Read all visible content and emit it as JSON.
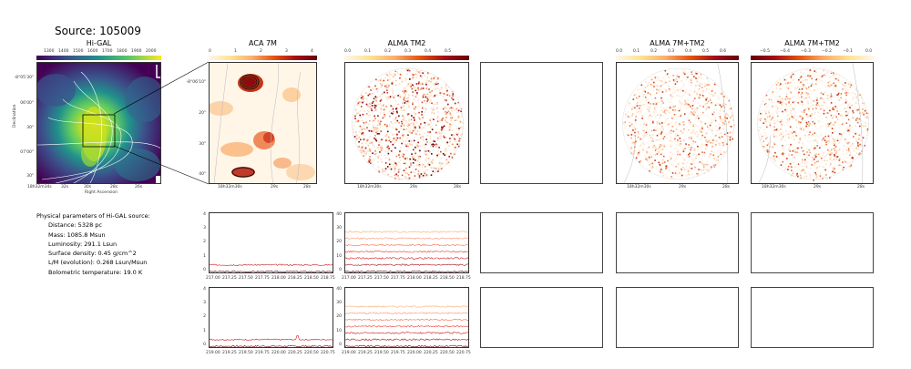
{
  "source_title": "Source: 105009",
  "panels": {
    "higal": {
      "title": "Hi-GAL",
      "colorbar_ticks": [
        "1300",
        "1400",
        "1500",
        "1600",
        "1700",
        "1800",
        "1900",
        "2000"
      ],
      "y_ticks": [
        "-8°05'30\"",
        "06'00\"",
        "30\"",
        "07'00\"",
        "30\""
      ],
      "x_ticks": [
        "18h32m34s",
        "32s",
        "30s",
        "28s",
        "26s"
      ],
      "ylabel": "Declination",
      "xlabel": "Right Ascension"
    },
    "aca": {
      "title": "ACA 7M",
      "colorbar_ticks": [
        "0",
        "1",
        "2",
        "3",
        "4"
      ],
      "y_ticks": [
        "-8°06'10\"",
        "20\"",
        "30\"",
        "40\""
      ],
      "x_ticks": [
        "18h32m30s",
        "29s",
        "28s"
      ]
    },
    "alma_tm2": {
      "title": "ALMA TM2",
      "colorbar_ticks": [
        "0.0",
        "0.1",
        "0.2",
        "0.3",
        "0.4",
        "0.5"
      ],
      "x_ticks": [
        "18h32m30s",
        "29s",
        "28s"
      ]
    },
    "alma_7m_tm2": {
      "title": "ALMA 7M+TM2",
      "colorbar_ticks": [
        "0.0",
        "0.1",
        "0.2",
        "0.3",
        "0.4",
        "0.5",
        "0.6"
      ],
      "x_ticks": [
        "18h32m30s",
        "29s",
        "28s"
      ]
    },
    "alma_7m_tm2_b": {
      "title": "ALMA 7M+TM2",
      "colorbar_ticks": [
        "−0.5",
        "−0.4",
        "−0.3",
        "−0.2",
        "−0.1",
        "0.0"
      ],
      "x_ticks": [
        "18h32m30s",
        "29s",
        "28s"
      ]
    }
  },
  "physical": {
    "heading": "Physical parameters of Hi-GAL source:",
    "lines": [
      "Distance: 5328 pc",
      "Mass: 1085.8 Msun",
      "Luminosity: 291.1 Lsun",
      "Surface density: 0.45 g/cm^2",
      "L/M (evolution): 0.268 Lsun/Msun",
      "Bolometric temperature: 19.0 K"
    ]
  },
  "spectra": {
    "aca_y_ticks": [
      "4",
      "3",
      "2",
      "1",
      "0"
    ],
    "tm2_y_ticks": [
      "40",
      "30",
      "20",
      "10",
      "0"
    ],
    "row1_x_ticks": [
      "217.00",
      "217.25",
      "217.50",
      "217.75",
      "218.00",
      "218.25",
      "218.50",
      "218.75"
    ],
    "row2_x_ticks": [
      "219.00",
      "219.25",
      "219.50",
      "219.75",
      "220.00",
      "220.25",
      "220.50",
      "220.75"
    ]
  },
  "colors": {
    "viridis": [
      "#440154",
      "#3b528b",
      "#21918c",
      "#5ec962",
      "#fde725"
    ],
    "ylorrd": [
      "#ffffff",
      "#fee391",
      "#fdae6b",
      "#e6550d",
      "#a50f15"
    ],
    "spectra_lines": [
      "#67000d",
      "#a50f15",
      "#cb181d",
      "#ef3b2c",
      "#fb6a4a",
      "#fc9272",
      "#fdae6b",
      "#f4a460"
    ]
  }
}
